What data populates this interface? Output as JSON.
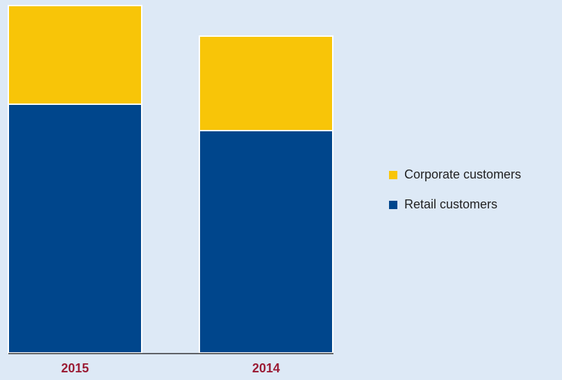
{
  "chart_data": {
    "type": "stacked_bar",
    "categories": [
      "2015",
      "2014"
    ],
    "series": [
      {
        "name": "Retail customers",
        "color": "#00468c",
        "values": [
          358,
          320
        ]
      },
      {
        "name": "Corporate customers",
        "color": "#f8c508",
        "values": [
          142,
          136
        ]
      }
    ],
    "ylim": [
      0,
      500
    ]
  }
}
